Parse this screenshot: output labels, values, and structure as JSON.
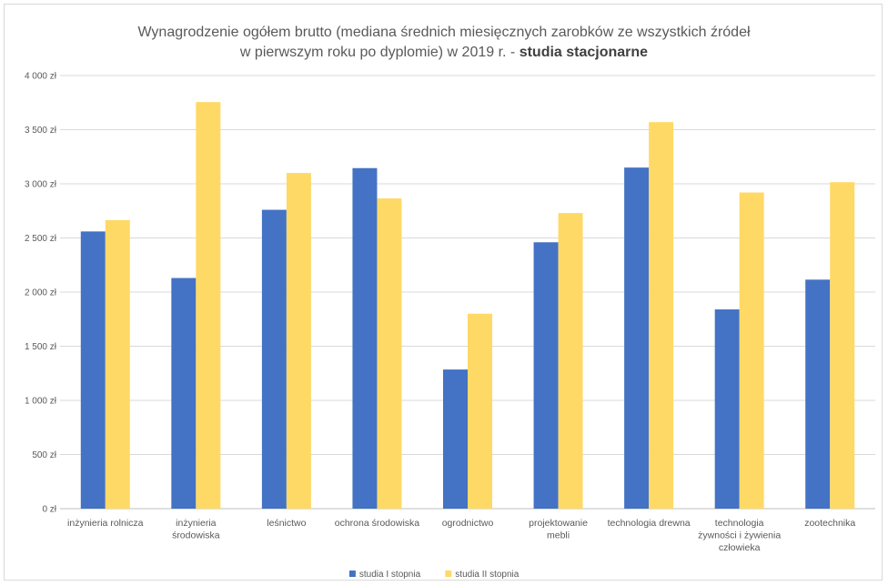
{
  "chart_data": {
    "type": "bar",
    "title_line1": "Wynagrodzenie ogółem brutto (mediana średnich miesięcznych zarobków ze wszystkich źródeł",
    "title_line2_normal": "w pierwszym roku po dyplomie) w 2019 r. - ",
    "title_line2_bold": "studia stacjonarne",
    "categories": [
      [
        "inżynieria rolnicza"
      ],
      [
        "inżynieria",
        "środowiska"
      ],
      [
        "leśnictwo"
      ],
      [
        "ochrona środowiska"
      ],
      [
        "ogrodnictwo"
      ],
      [
        "projektowanie",
        "mebli"
      ],
      [
        "technologia drewna"
      ],
      [
        "technologia",
        "żywności i żywienia",
        "człowieka"
      ],
      [
        "zootechnika"
      ]
    ],
    "series": [
      {
        "name": "studia I stopnia",
        "color": "#4472c4",
        "values": [
          2560,
          2130,
          2760,
          3145,
          1285,
          2460,
          3150,
          1840,
          2115
        ]
      },
      {
        "name": "studia II stopnia",
        "color": "#ffd966",
        "values": [
          2665,
          3755,
          3100,
          2865,
          1800,
          2730,
          3570,
          2920,
          3015
        ]
      }
    ],
    "ylim": [
      0,
      4000
    ],
    "yticks": [
      0,
      500,
      1000,
      1500,
      2000,
      2500,
      3000,
      3500,
      4000
    ],
    "ytick_labels": [
      "0 zł",
      "500 zł",
      "1 000 zł",
      "1 500 zł",
      "2 000 zł",
      "2 500 zł",
      "3 000 zł",
      "3 500 zł",
      "4 000 zł"
    ],
    "grid": true,
    "legend_position": "bottom"
  }
}
